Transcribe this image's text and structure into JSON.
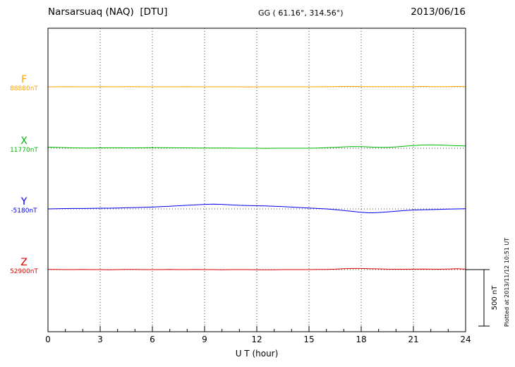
{
  "header": {
    "station": "Narsarsuaq (NAQ)  [DTU]",
    "coords": "GG ( 61.16°, 314.56°)",
    "date": "2013/06/16"
  },
  "side_note": "Plotted at 2013/11/12 10:51 UT",
  "scale_bar": {
    "label": "500 nT",
    "nT": 500
  },
  "axis": {
    "xlabel": "U T (hour)",
    "ticks": [
      0,
      3,
      6,
      9,
      12,
      15,
      18,
      21,
      24
    ]
  },
  "chart_data": {
    "type": "line",
    "title": "Narsarsuaq (NAQ) [DTU] magnetogram 2013/06/16",
    "xlabel": "U T (hour)",
    "ylabel": "",
    "x_range": [
      0,
      24
    ],
    "x_step_hours": 0.5,
    "grid": "vertical-dotted-every-3h",
    "scale_nT_per_division": 500,
    "series": [
      {
        "name": "F",
        "baseline_label": "88880nT",
        "baseline_nT": 88880,
        "color": "#FFA500",
        "values_are": "deviation from baseline in nT at 0.5 h steps",
        "values": [
          0,
          0,
          1,
          0,
          0,
          0,
          1,
          0,
          0,
          1,
          1,
          0,
          0,
          0,
          0,
          0,
          1,
          0,
          0,
          0,
          0,
          0,
          0,
          -1,
          0,
          0,
          0,
          0,
          0,
          0,
          0,
          0,
          1,
          2,
          3,
          3,
          2,
          1,
          1,
          1,
          1,
          2,
          2,
          3,
          2,
          2,
          2,
          3,
          2
        ]
      },
      {
        "name": "X",
        "baseline_label": "11770nT",
        "baseline_nT": 11770,
        "color": "#00BB00",
        "values_are": "deviation from baseline in nT at 0.5 h steps",
        "values": [
          10,
          8,
          5,
          3,
          2,
          2,
          3,
          4,
          4,
          3,
          3,
          4,
          5,
          5,
          4,
          3,
          3,
          2,
          2,
          2,
          1,
          1,
          0,
          0,
          0,
          -1,
          0,
          0,
          0,
          0,
          0,
          2,
          5,
          8,
          12,
          15,
          14,
          11,
          8,
          8,
          12,
          18,
          24,
          28,
          30,
          28,
          25,
          22,
          20
        ]
      },
      {
        "name": "Y",
        "baseline_label": "-5180nT",
        "baseline_nT": -5180,
        "color": "#0000EE",
        "values_are": "deviation from baseline in nT at 0.5 h steps",
        "values": [
          0,
          2,
          3,
          4,
          4,
          5,
          6,
          6,
          8,
          10,
          12,
          14,
          16,
          20,
          24,
          28,
          32,
          36,
          40,
          42,
          40,
          36,
          32,
          30,
          28,
          26,
          24,
          20,
          16,
          12,
          8,
          4,
          0,
          -6,
          -14,
          -22,
          -30,
          -35,
          -32,
          -26,
          -20,
          -14,
          -10,
          -8,
          -6,
          -4,
          -2,
          0,
          2
        ]
      },
      {
        "name": "Z",
        "baseline_label": "52900nT",
        "baseline_nT": 52900,
        "color": "#DD0000",
        "values_are": "deviation from baseline in nT at 0.5 h steps",
        "values": [
          2,
          1,
          0,
          0,
          1,
          0,
          0,
          -1,
          0,
          1,
          1,
          0,
          0,
          0,
          1,
          0,
          0,
          1,
          0,
          0,
          -1,
          0,
          0,
          0,
          -2,
          -2,
          -1,
          0,
          0,
          0,
          0,
          1,
          2,
          4,
          8,
          10,
          10,
          8,
          6,
          4,
          3,
          3,
          4,
          5,
          4,
          3,
          5,
          8,
          4
        ]
      }
    ]
  }
}
